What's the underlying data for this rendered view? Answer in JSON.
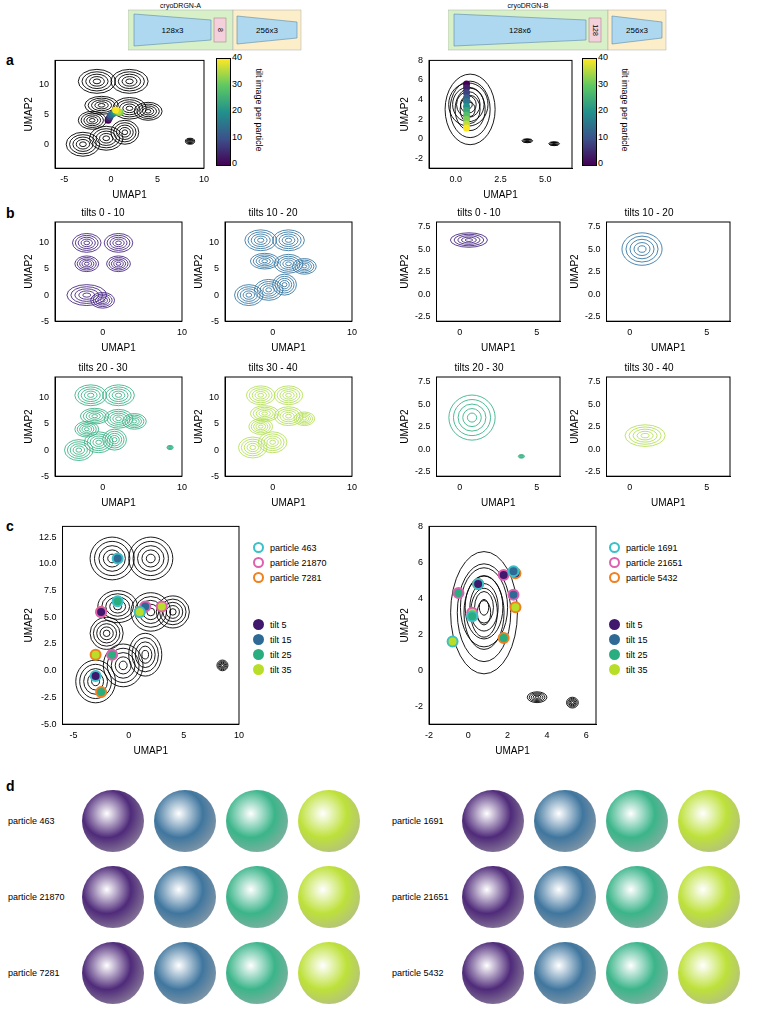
{
  "architectures": [
    {
      "title": "cryoDRGN-A",
      "encoder": "128x3",
      "latent": "8",
      "decoder": "256x3"
    },
    {
      "title": "cryoDRGN-B",
      "encoder": "128x6",
      "latent": "128",
      "decoder": "256x3"
    }
  ],
  "panel_labels": [
    "a",
    "b",
    "c",
    "d"
  ],
  "chart_data": [
    {
      "type": "contour",
      "x_label": "UMAP1",
      "y_label": "UMAP2",
      "xlim": [
        -6,
        10
      ],
      "xticks": [
        -5,
        0,
        5,
        10
      ],
      "ylim": [
        -4,
        14
      ],
      "yticks": [
        0,
        5,
        10
      ],
      "contour_color": "#000000",
      "peaks": [
        {
          "x": -3,
          "y": 0,
          "rx": 1.8,
          "ry": 2
        },
        {
          "x": -0.5,
          "y": 1,
          "rx": 1.8,
          "ry": 2
        },
        {
          "x": 1.5,
          "y": 2,
          "rx": 1.5,
          "ry": 2
        },
        {
          "x": -2,
          "y": 4,
          "rx": 1.5,
          "ry": 1.5
        },
        {
          "x": -1,
          "y": 6.5,
          "rx": 1.8,
          "ry": 1.5
        },
        {
          "x": 2,
          "y": 6,
          "rx": 1.8,
          "ry": 1.8
        },
        {
          "x": 4,
          "y": 5.5,
          "rx": 1.5,
          "ry": 1.5
        },
        {
          "x": -1.5,
          "y": 10.5,
          "rx": 2,
          "ry": 2
        },
        {
          "x": 2,
          "y": 10.5,
          "rx": 2,
          "ry": 2
        },
        {
          "x": 8.5,
          "y": 0.5,
          "rx": 0.5,
          "ry": 0.5
        }
      ],
      "trajectory": {
        "tilt": [
          0,
          4,
          8,
          12,
          16,
          20,
          24,
          28,
          32,
          36,
          40
        ],
        "x": [
          -0.3,
          -0.2,
          -0.1,
          0,
          0.2,
          0.4,
          0.6,
          0.8,
          1.0,
          0.8,
          0.5
        ],
        "y": [
          4.0,
          4.3,
          4.6,
          4.9,
          5.1,
          5.3,
          5.4,
          5.4,
          5.3,
          5.5,
          5.7
        ]
      },
      "colorbar": {
        "label": "tilt image per particle",
        "lim": [
          0,
          40
        ],
        "ticks": [
          0,
          10,
          20,
          30,
          40
        ]
      }
    },
    {
      "type": "contour",
      "title": "tilts 0 - 10",
      "x_label": "UMAP1",
      "y_label": "UMAP2",
      "xlim": [
        -6,
        10
      ],
      "xticks": [
        0,
        10
      ],
      "ylim": [
        -5,
        14
      ],
      "yticks": [
        -5,
        0,
        5,
        10
      ],
      "contour_color": "#4b2a85",
      "peaks": [
        {
          "x": -2,
          "y": 10,
          "rx": 1.8,
          "ry": 1.8
        },
        {
          "x": 2,
          "y": 10,
          "rx": 1.8,
          "ry": 1.8
        },
        {
          "x": -2,
          "y": 6,
          "rx": 1.5,
          "ry": 1.5
        },
        {
          "x": 2,
          "y": 6,
          "rx": 1.5,
          "ry": 1.5
        },
        {
          "x": -2,
          "y": 0,
          "rx": 2.5,
          "ry": 2
        },
        {
          "x": 0,
          "y": -1,
          "rx": 1.5,
          "ry": 1.5
        }
      ]
    },
    {
      "type": "contour",
      "title": "tilts 10 - 20",
      "x_label": "UMAP1",
      "y_label": "UMAP2",
      "xlim": [
        -6,
        10
      ],
      "xticks": [
        0,
        10
      ],
      "ylim": [
        -5,
        14
      ],
      "yticks": [
        -5,
        0,
        5,
        10
      ],
      "contour_color": "#3a7ba6",
      "peaks": [
        {
          "x": -3,
          "y": 0,
          "rx": 1.8,
          "ry": 2
        },
        {
          "x": -0.5,
          "y": 1,
          "rx": 1.8,
          "ry": 2
        },
        {
          "x": 1.5,
          "y": 2,
          "rx": 1.5,
          "ry": 2
        },
        {
          "x": -1,
          "y": 6.5,
          "rx": 1.8,
          "ry": 1.5
        },
        {
          "x": 2,
          "y": 6,
          "rx": 1.8,
          "ry": 1.8
        },
        {
          "x": 4,
          "y": 5.5,
          "rx": 1.5,
          "ry": 1.5
        },
        {
          "x": -1.5,
          "y": 10.5,
          "rx": 2,
          "ry": 2
        },
        {
          "x": 2,
          "y": 10.5,
          "rx": 2,
          "ry": 2
        }
      ]
    },
    {
      "type": "contour",
      "title": "tilts 20 - 30",
      "x_label": "UMAP1",
      "y_label": "UMAP2",
      "xlim": [
        -6,
        10
      ],
      "xticks": [
        0,
        10
      ],
      "ylim": [
        -5,
        14
      ],
      "yticks": [
        -5,
        0,
        5,
        10
      ],
      "contour_color": "#3eb489",
      "peaks": [
        {
          "x": -3,
          "y": 0,
          "rx": 1.8,
          "ry": 2
        },
        {
          "x": -0.5,
          "y": 1.5,
          "rx": 1.8,
          "ry": 2
        },
        {
          "x": 1.5,
          "y": 2,
          "rx": 1.5,
          "ry": 2
        },
        {
          "x": -2,
          "y": 4,
          "rx": 1.5,
          "ry": 1.5
        },
        {
          "x": -1,
          "y": 6.5,
          "rx": 1.8,
          "ry": 1.5
        },
        {
          "x": 2,
          "y": 6,
          "rx": 1.8,
          "ry": 1.8
        },
        {
          "x": 4,
          "y": 5.5,
          "rx": 1.5,
          "ry": 1.5
        },
        {
          "x": -1.5,
          "y": 10.5,
          "rx": 2,
          "ry": 2
        },
        {
          "x": 2,
          "y": 10.5,
          "rx": 2,
          "ry": 2
        },
        {
          "x": 8.5,
          "y": 0.5,
          "rx": 0.4,
          "ry": 0.4
        }
      ]
    },
    {
      "type": "contour",
      "title": "tilts 30 - 40",
      "x_label": "UMAP1",
      "y_label": "UMAP2",
      "xlim": [
        -6,
        10
      ],
      "xticks": [
        0,
        10
      ],
      "ylim": [
        -5,
        14
      ],
      "yticks": [
        -5,
        0,
        5,
        10
      ],
      "contour_color": "#b5e15a",
      "peaks": [
        {
          "x": -2.5,
          "y": 0.5,
          "rx": 1.8,
          "ry": 2
        },
        {
          "x": 0,
          "y": 1.5,
          "rx": 1.8,
          "ry": 2
        },
        {
          "x": -1.5,
          "y": 4.5,
          "rx": 1.5,
          "ry": 1.5
        },
        {
          "x": -1,
          "y": 7,
          "rx": 1.8,
          "ry": 1.5
        },
        {
          "x": 2,
          "y": 6.5,
          "rx": 1.8,
          "ry": 1.8
        },
        {
          "x": 4,
          "y": 6,
          "rx": 1.3,
          "ry": 1.3
        },
        {
          "x": -1.5,
          "y": 10.5,
          "rx": 1.8,
          "ry": 1.8
        },
        {
          "x": 2,
          "y": 10.5,
          "rx": 1.8,
          "ry": 1.8
        }
      ]
    },
    {
      "type": "contour",
      "x_label": "UMAP1",
      "y_label": "UMAP2",
      "xlim": [
        -6,
        10
      ],
      "xticks": [
        -5,
        0,
        5,
        10
      ],
      "ylim": [
        -5,
        13.5
      ],
      "yticks": [
        {
          "value": -5,
          "label": "-5.0"
        },
        {
          "value": -2.5,
          "label": "-2.5"
        },
        {
          "value": 0,
          "label": "0.0"
        },
        {
          "value": 2.5,
          "label": "2.5"
        },
        {
          "value": 5,
          "label": "5.0"
        },
        {
          "value": 7.5,
          "label": "7.5"
        },
        {
          "value": 10,
          "label": "10.0"
        },
        {
          "value": 12.5,
          "label": "12.5"
        }
      ],
      "contour_color": "#000000",
      "peaks": [
        {
          "x": -3,
          "y": -1,
          "rx": 1.8,
          "ry": 2
        },
        {
          "x": -0.5,
          "y": 0.5,
          "rx": 1.8,
          "ry": 2
        },
        {
          "x": 1.5,
          "y": 1.5,
          "rx": 1.5,
          "ry": 2
        },
        {
          "x": -2,
          "y": 3.5,
          "rx": 1.5,
          "ry": 1.5
        },
        {
          "x": -1,
          "y": 6,
          "rx": 1.8,
          "ry": 1.5
        },
        {
          "x": 2,
          "y": 5.5,
          "rx": 1.8,
          "ry": 1.8
        },
        {
          "x": 4,
          "y": 5.5,
          "rx": 1.5,
          "ry": 1.5
        },
        {
          "x": -1.5,
          "y": 10.5,
          "rx": 2,
          "ry": 2
        },
        {
          "x": 2,
          "y": 10.5,
          "rx": 2,
          "ry": 2
        },
        {
          "x": 8.5,
          "y": 0.5,
          "rx": 0.5,
          "ry": 0.5
        }
      ],
      "series": [
        {
          "name": "particle 463",
          "color": "#3cc0c8",
          "tilts": [
            5,
            15,
            25,
            35
          ],
          "x": [
            -3,
            -1,
            -1,
            1
          ],
          "y": [
            -0.5,
            10.5,
            6.5,
            5.5
          ]
        },
        {
          "name": "particle 21870",
          "color": "#e060b0",
          "tilts": [
            5,
            15,
            25,
            35
          ],
          "x": [
            -2.5,
            1.5,
            -1.5,
            3
          ],
          "y": [
            5.5,
            6,
            1.5,
            6
          ]
        },
        {
          "name": "particle 7281",
          "color": "#f08020",
          "tilts": [
            5,
            15,
            25,
            35
          ],
          "x": [
            1,
            -2.5,
            -2.5,
            -3
          ],
          "y": [
            5.5,
            5.5,
            -2,
            1.5
          ]
        }
      ],
      "tilt_legend": [
        {
          "name": "tilt 5",
          "value": 5,
          "color": "#40186e"
        },
        {
          "name": "tilt 15",
          "value": 15,
          "color": "#2f6a96"
        },
        {
          "name": "tilt 25",
          "value": 25,
          "color": "#2aae80"
        },
        {
          "name": "tilt 35",
          "value": 35,
          "color": "#b8de29"
        }
      ]
    },
    {
      "type": "contour",
      "x_label": "UMAP1",
      "y_label": "UMAP2",
      "xlim": [
        -1.5,
        6.5
      ],
      "xticks": [
        {
          "value": 0,
          "label": "0.0"
        },
        {
          "value": 2.5,
          "label": "2.5"
        },
        {
          "value": 5,
          "label": "5.0"
        }
      ],
      "ylim": [
        -3,
        8
      ],
      "yticks": [
        -2,
        0,
        2,
        4,
        6,
        8
      ],
      "contour_color": "#000000",
      "peaks": [
        {
          "x": 0.8,
          "y": 3,
          "rx": 1.4,
          "ry": 3.6
        },
        {
          "x": 0.7,
          "y": 3.5,
          "rx": 1.1,
          "ry": 2.2
        },
        {
          "x": 4,
          "y": -0.2,
          "rx": 0.3,
          "ry": 0.2
        },
        {
          "x": 5.5,
          "y": -0.5,
          "rx": 0.3,
          "ry": 0.2
        }
      ],
      "trajectory": {
        "tilt": [
          0,
          4,
          8,
          12,
          16,
          20,
          24,
          28,
          32,
          36,
          40
        ],
        "x": [
          0.6,
          0.6,
          0.6,
          0.6,
          0.6,
          0.6,
          0.6,
          0.6,
          0.6,
          0.6,
          0.6
        ],
        "y": [
          5.6,
          5.2,
          4.7,
          4.2,
          3.8,
          3.3,
          2.9,
          2.4,
          2.0,
          1.5,
          1.1
        ]
      },
      "colorbar": {
        "label": "tilt image per particle",
        "lim": [
          0,
          40
        ],
        "ticks": [
          0,
          10,
          20,
          30,
          40
        ]
      }
    },
    {
      "type": "contour",
      "title": "tilts 0 - 10",
      "x_label": "UMAP1",
      "y_label": "UMAP2",
      "xlim": [
        -1.5,
        6.5
      ],
      "xticks": [
        0,
        5
      ],
      "ylim": [
        -3,
        8
      ],
      "yticks": [
        {
          "value": -2.5,
          "label": "-2.5"
        },
        {
          "value": 0,
          "label": "0.0"
        },
        {
          "value": 2.5,
          "label": "2.5"
        },
        {
          "value": 5,
          "label": "5.0"
        },
        {
          "value": 7.5,
          "label": "7.5"
        }
      ],
      "contour_color": "#4b2a85",
      "peaks": [
        {
          "x": 0.6,
          "y": 6,
          "rx": 1.2,
          "ry": 0.8
        }
      ]
    },
    {
      "type": "contour",
      "title": "tilts 10 - 20",
      "x_label": "UMAP1",
      "y_label": "UMAP2",
      "xlim": [
        -1.5,
        6.5
      ],
      "xticks": [
        0,
        5
      ],
      "ylim": [
        -3,
        8
      ],
      "yticks": [
        {
          "value": -2.5,
          "label": "-2.5"
        },
        {
          "value": 0,
          "label": "0.0"
        },
        {
          "value": 2.5,
          "label": "2.5"
        },
        {
          "value": 5,
          "label": "5.0"
        },
        {
          "value": 7.5,
          "label": "7.5"
        }
      ],
      "contour_color": "#3a7ba6",
      "peaks": [
        {
          "x": 0.8,
          "y": 5,
          "rx": 1.3,
          "ry": 1.8
        }
      ]
    },
    {
      "type": "contour",
      "title": "tilts 20 - 30",
      "x_label": "UMAP1",
      "y_label": "UMAP2",
      "xlim": [
        -1.5,
        6.5
      ],
      "xticks": [
        0,
        5
      ],
      "ylim": [
        -3,
        8
      ],
      "yticks": [
        {
          "value": -2.5,
          "label": "-2.5"
        },
        {
          "value": 0,
          "label": "0.0"
        },
        {
          "value": 2.5,
          "label": "2.5"
        },
        {
          "value": 5,
          "label": "5.0"
        },
        {
          "value": 7.5,
          "label": "7.5"
        }
      ],
      "contour_color": "#3eb489",
      "peaks": [
        {
          "x": 0.8,
          "y": 3.5,
          "rx": 1.5,
          "ry": 2.5
        },
        {
          "x": 4,
          "y": -0.8,
          "rx": 0.2,
          "ry": 0.2
        }
      ]
    },
    {
      "type": "contour",
      "title": "tilts 30 - 40",
      "x_label": "UMAP1",
      "y_label": "UMAP2",
      "xlim": [
        -1.5,
        6.5
      ],
      "xticks": [
        0,
        5
      ],
      "ylim": [
        -3,
        8
      ],
      "yticks": [
        {
          "value": -2.5,
          "label": "-2.5"
        },
        {
          "value": 0,
          "label": "0.0"
        },
        {
          "value": 2.5,
          "label": "2.5"
        },
        {
          "value": 5,
          "label": "5.0"
        },
        {
          "value": 7.5,
          "label": "7.5"
        }
      ],
      "contour_color": "#b5e15a",
      "peaks": [
        {
          "x": 1,
          "y": 1.5,
          "rx": 1.3,
          "ry": 1.2
        }
      ]
    },
    {
      "type": "contour",
      "x_label": "UMAP1",
      "y_label": "UMAP2",
      "xlim": [
        -2,
        6.5
      ],
      "xticks": [
        -2,
        0,
        2,
        4,
        6
      ],
      "ylim": [
        -3,
        8
      ],
      "yticks": [
        -2,
        0,
        2,
        4,
        6,
        8
      ],
      "contour_color": "#000000",
      "peaks": [
        {
          "x": 0.8,
          "y": 3.2,
          "rx": 1.7,
          "ry": 3.4
        },
        {
          "x": 0.8,
          "y": 3.5,
          "rx": 1.2,
          "ry": 2.2
        },
        {
          "x": 3.5,
          "y": -1.5,
          "rx": 0.5,
          "ry": 0.3
        },
        {
          "x": 5.3,
          "y": -1.8,
          "rx": 0.3,
          "ry": 0.3
        }
      ],
      "series": [
        {
          "name": "particle 1691",
          "color": "#3cc0c8",
          "tilts": [
            5,
            15,
            25,
            35
          ],
          "x": [
            0.5,
            2.3,
            0.2,
            -0.8
          ],
          "y": [
            4.8,
            5.5,
            3.0,
            1.6
          ]
        },
        {
          "name": "particle 21651",
          "color": "#e060b0",
          "tilts": [
            5,
            15,
            25,
            35
          ],
          "x": [
            1.8,
            2.3,
            -0.5,
            0.2
          ],
          "y": [
            5.3,
            4.2,
            4.3,
            3.2
          ]
        },
        {
          "name": "particle 5432",
          "color": "#f08020",
          "tilts": [
            5,
            15,
            25,
            35
          ],
          "x": [
            2.4,
            0.5,
            1.8,
            2.4
          ],
          "y": [
            5.4,
            4.8,
            1.8,
            3.5
          ]
        }
      ],
      "tilt_legend": [
        {
          "name": "tilt 5",
          "value": 5,
          "color": "#40186e"
        },
        {
          "name": "tilt 15",
          "value": 15,
          "color": "#2f6a96"
        },
        {
          "name": "tilt 25",
          "value": 25,
          "color": "#2aae80"
        },
        {
          "name": "tilt 35",
          "value": 35,
          "color": "#b8de29"
        }
      ]
    }
  ],
  "volumes": [
    {
      "particles": [
        "particle 463",
        "particle 21870",
        "particle 7281"
      ]
    },
    {
      "particles": [
        "particle 1691",
        "particle 21651",
        "particle 5432"
      ]
    }
  ]
}
